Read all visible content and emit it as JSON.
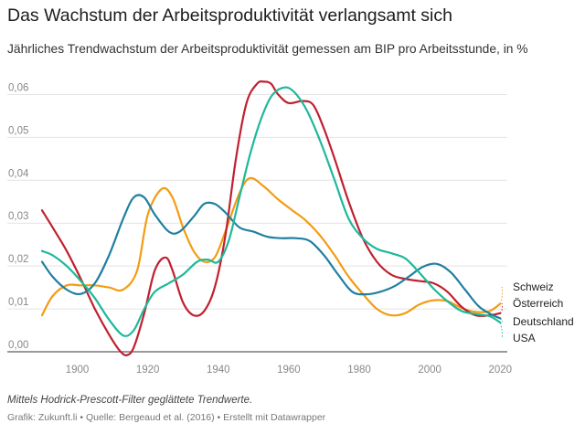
{
  "title": "Das Wachstum der Arbeitsproduktivität verlangsamt sich",
  "subtitle": "Jährliches Trendwachstum der Arbeitsproduktivität gemessen am BIP pro Arbeitsstunde, in %",
  "note": "Mittels Hodrick-Prescott-Filter geglättete Trendwerte.",
  "source": "Grafik: Zukunft.li • Quelle: Bergeaud et al. (2016) • Erstellt mit Datawrapper",
  "chart_data": {
    "type": "line",
    "title": "Das Wachstum der Arbeitsproduktivität verlangsamt sich",
    "subtitle": "Jährliches Trendwachstum der Arbeitsproduktivität gemessen am BIP pro Arbeitsstunde, in %",
    "xlim": [
      1890,
      2022
    ],
    "ylim": [
      0,
      0.065
    ],
    "xticks": [
      1900,
      1920,
      1940,
      1960,
      1980,
      2000,
      2020
    ],
    "yticks": [
      0,
      0.01,
      0.02,
      0.03,
      0.04,
      0.05,
      0.06
    ],
    "ytick_labels": [
      "0,00",
      "0,01",
      "0,02",
      "0,03",
      "0,04",
      "0,05",
      "0,06"
    ],
    "grid": true,
    "legend": "right end labels",
    "series": [
      {
        "name": "Schweiz",
        "color": "#f39c12",
        "x": [
          1890,
          1893,
          1897,
          1901,
          1905,
          1909,
          1913,
          1917,
          1920,
          1924,
          1927,
          1930,
          1933,
          1936,
          1939,
          1942,
          1946,
          1949,
          1953,
          1957,
          1961,
          1965,
          1969,
          1973,
          1977,
          1981,
          1985,
          1989,
          1993,
          1997,
          2001,
          2005,
          2009,
          2013,
          2017,
          2020
        ],
        "y": [
          0.0085,
          0.013,
          0.0155,
          0.0155,
          0.0155,
          0.015,
          0.0145,
          0.019,
          0.032,
          0.038,
          0.036,
          0.029,
          0.0235,
          0.021,
          0.022,
          0.028,
          0.037,
          0.0405,
          0.0385,
          0.0355,
          0.033,
          0.0305,
          0.027,
          0.0225,
          0.0175,
          0.0135,
          0.01,
          0.0085,
          0.009,
          0.011,
          0.012,
          0.0118,
          0.0102,
          0.0093,
          0.0095,
          0.0112
        ]
      },
      {
        "name": "Österreich",
        "color": "#c0202f",
        "x": [
          1890,
          1893,
          1897,
          1901,
          1905,
          1909,
          1912,
          1914,
          1916,
          1919,
          1922,
          1925,
          1927,
          1930,
          1933,
          1936,
          1939,
          1942,
          1945,
          1948,
          1951,
          1953,
          1955,
          1957,
          1960,
          1964,
          1967,
          1970,
          1973,
          1977,
          1981,
          1985,
          1989,
          1993,
          1997,
          2001,
          2005,
          2009,
          2013,
          2017,
          2020
        ],
        "y": [
          0.033,
          0.029,
          0.0235,
          0.017,
          0.01,
          0.004,
          0.0003,
          -0.0008,
          0.001,
          0.009,
          0.019,
          0.022,
          0.019,
          0.0115,
          0.0085,
          0.0095,
          0.015,
          0.027,
          0.045,
          0.058,
          0.0625,
          0.063,
          0.0625,
          0.06,
          0.058,
          0.0585,
          0.0575,
          0.052,
          0.045,
          0.035,
          0.0265,
          0.021,
          0.018,
          0.017,
          0.0165,
          0.016,
          0.014,
          0.0105,
          0.0085,
          0.0085,
          0.009
        ]
      },
      {
        "name": "Deutschland",
        "color": "#1f7fa0",
        "x": [
          1890,
          1893,
          1897,
          1901,
          1905,
          1909,
          1913,
          1916,
          1919,
          1922,
          1926,
          1929,
          1933,
          1936,
          1939,
          1942,
          1946,
          1950,
          1954,
          1958,
          1962,
          1966,
          1970,
          1974,
          1978,
          1982,
          1986,
          1990,
          1994,
          1998,
          2002,
          2006,
          2010,
          2014,
          2018,
          2020
        ],
        "y": [
          0.021,
          0.0175,
          0.0145,
          0.0135,
          0.016,
          0.0225,
          0.031,
          0.036,
          0.036,
          0.032,
          0.028,
          0.028,
          0.0315,
          0.0345,
          0.0345,
          0.0325,
          0.029,
          0.028,
          0.0268,
          0.0265,
          0.0265,
          0.0258,
          0.0225,
          0.018,
          0.014,
          0.0134,
          0.014,
          0.0153,
          0.0175,
          0.0198,
          0.0205,
          0.0185,
          0.0145,
          0.0105,
          0.0085,
          0.0078
        ]
      },
      {
        "name": "USA",
        "color": "#1fb89a",
        "x": [
          1890,
          1893,
          1897,
          1901,
          1905,
          1909,
          1913,
          1916,
          1919,
          1922,
          1926,
          1930,
          1934,
          1937,
          1940,
          1943,
          1946,
          1949,
          1952,
          1955,
          1958,
          1961,
          1965,
          1969,
          1973,
          1977,
          1981,
          1985,
          1989,
          1993,
          1997,
          2001,
          2005,
          2009,
          2013,
          2017,
          2020
        ],
        "y": [
          0.0235,
          0.0225,
          0.02,
          0.0165,
          0.0125,
          0.0075,
          0.0038,
          0.005,
          0.01,
          0.014,
          0.016,
          0.018,
          0.021,
          0.0215,
          0.021,
          0.026,
          0.036,
          0.046,
          0.054,
          0.0595,
          0.0615,
          0.061,
          0.0565,
          0.049,
          0.04,
          0.031,
          0.0265,
          0.024,
          0.023,
          0.0218,
          0.0185,
          0.0148,
          0.0118,
          0.0095,
          0.0088,
          0.0083,
          0.0068
        ]
      }
    ],
    "end_labels": [
      "Schweiz",
      "Österreich",
      "Deutschland",
      "USA"
    ]
  }
}
